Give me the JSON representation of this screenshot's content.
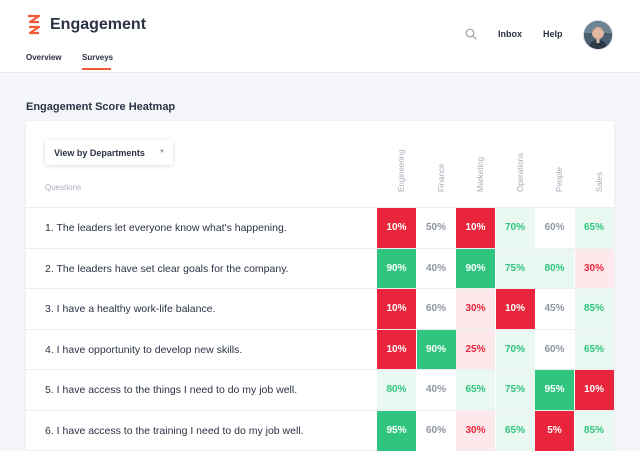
{
  "header": {
    "app_title": "Engagement",
    "tabs": [
      {
        "label": "Overview",
        "active": false
      },
      {
        "label": "Surveys",
        "active": true
      }
    ],
    "search_icon": "search-icon",
    "nav": {
      "inbox": "Inbox",
      "help": "Help"
    }
  },
  "main": {
    "title": "Engagement Score Heatmap",
    "view_select": "View by Departments",
    "questions_label": "Questions",
    "columns": [
      "Engineering",
      "Finance",
      "Marketing",
      "Operations",
      "People",
      "Sales"
    ],
    "rows": [
      {
        "question": "1. The leaders let everyone know what's happening.",
        "scores": [
          "10%",
          "50%",
          "10%",
          "70%",
          "60%",
          "65%"
        ]
      },
      {
        "question": "2. The leaders have set clear goals for the company.",
        "scores": [
          "90%",
          "40%",
          "90%",
          "75%",
          "80%",
          "30%"
        ]
      },
      {
        "question": "3. I have a healthy work-life balance.",
        "scores": [
          "10%",
          "60%",
          "30%",
          "10%",
          "45%",
          "85%"
        ]
      },
      {
        "question": "4. I have opportunity to develop new skills.",
        "scores": [
          "10%",
          "90%",
          "25%",
          "70%",
          "60%",
          "65%"
        ]
      },
      {
        "question": "5. I have access to the things I need to do my job well.",
        "scores": [
          "80%",
          "40%",
          "65%",
          "75%",
          "95%",
          "10%"
        ]
      },
      {
        "question": "6. I have access to the training I need to do my job well.",
        "scores": [
          "95%",
          "60%",
          "30%",
          "65%",
          "5%",
          "85%"
        ]
      }
    ]
  },
  "colors": {
    "accent": "#f05a38",
    "red_strong": "#e8253a",
    "red_light": "#fde8eb",
    "green_strong": "#2fc57f",
    "green_light": "#e9f8f0"
  }
}
